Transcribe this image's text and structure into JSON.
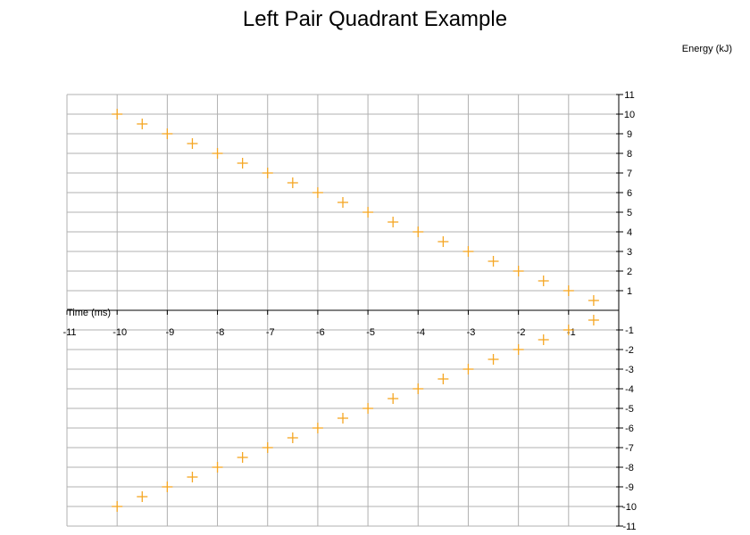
{
  "chart_data": {
    "type": "scatter",
    "title": "Left Pair Quadrant Example",
    "xlabel": "Time (ms)",
    "ylabel": "Energy (kJ)",
    "xlim": [
      -11,
      0
    ],
    "ylim": [
      -11,
      11
    ],
    "grid": true,
    "marker": "plus",
    "color": "#f5a623",
    "x_ticks": [
      -11,
      -10,
      -9,
      -8,
      -7,
      -6,
      -5,
      -4,
      -3,
      -2,
      -1
    ],
    "y_ticks": [
      -11,
      -10,
      -9,
      -8,
      -7,
      -6,
      -5,
      -4,
      -3,
      -2,
      -1,
      1,
      2,
      3,
      4,
      5,
      6,
      7,
      8,
      9,
      10,
      11
    ],
    "series": [
      {
        "x": [
          -10,
          -9.5,
          -9,
          -8.5,
          -8,
          -7.5,
          -7,
          -6.5,
          -6,
          -5.5,
          -5,
          -4.5,
          -4,
          -3.5,
          -3,
          -2.5,
          -2,
          -1.5,
          -1,
          -0.5
        ],
        "y": [
          10,
          9.5,
          9,
          8.5,
          8,
          7.5,
          7,
          6.5,
          6,
          5.5,
          5,
          4.5,
          4,
          3.5,
          3,
          2.5,
          2,
          1.5,
          1,
          0.5
        ]
      },
      {
        "x": [
          -10,
          -9.5,
          -9,
          -8.5,
          -8,
          -7.5,
          -7,
          -6.5,
          -6,
          -5.5,
          -5,
          -4.5,
          -4,
          -3.5,
          -3,
          -2.5,
          -2,
          -1.5,
          -1,
          -0.5
        ],
        "y": [
          -10,
          -9.5,
          -9,
          -8.5,
          -8,
          -7.5,
          -7,
          -6.5,
          -6,
          -5.5,
          -5,
          -4.5,
          -4,
          -3.5,
          -3,
          -2.5,
          -2,
          -1.5,
          -1,
          -0.5
        ]
      }
    ]
  }
}
